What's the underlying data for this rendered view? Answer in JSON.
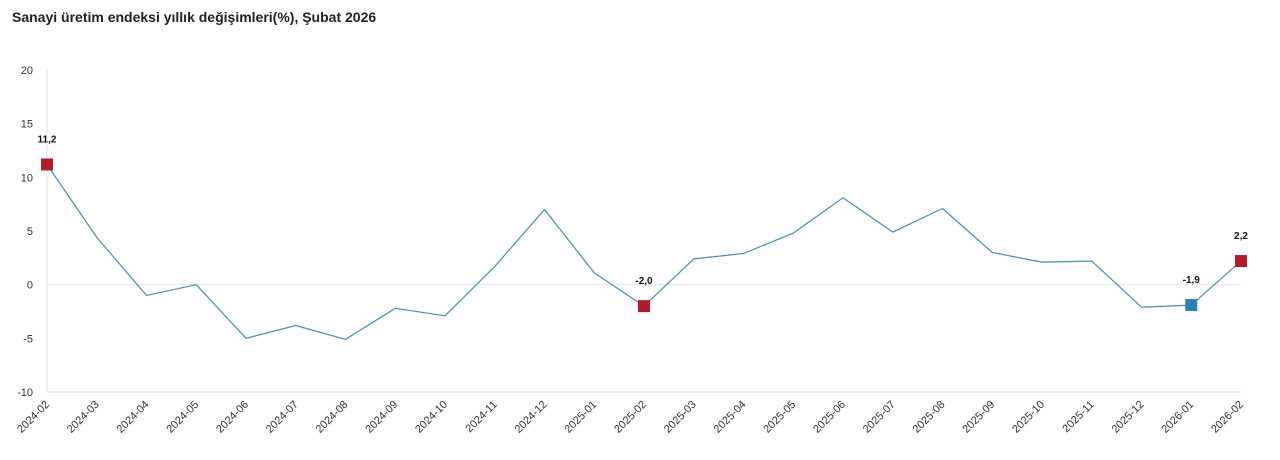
{
  "chart_data": {
    "type": "line",
    "title": "Sanayi üretim endeksi yıllık değişimleri(%), Şubat 2026",
    "xlabel": "",
    "ylabel": "",
    "ylim": [
      -10,
      20
    ],
    "yticks": [
      20,
      15,
      10,
      5,
      0,
      -5,
      -10
    ],
    "grid": false,
    "legend": "none",
    "line_color": "#4a8db0",
    "categories": [
      "2024-02",
      "2024-03",
      "2024-04",
      "2024-05",
      "2024-06",
      "2024-07",
      "2024-08",
      "2024-09",
      "2024-10",
      "2024-11",
      "2024-12",
      "2025-01",
      "2025-02",
      "2025-03",
      "2025-04",
      "2025-05",
      "2025-06",
      "2025-07",
      "2025-08",
      "2025-09",
      "2025-10",
      "2025-11",
      "2025-12",
      "2026-01",
      "2026-02"
    ],
    "series": [
      {
        "values": [
          11.2,
          4.4,
          -1.0,
          0.0,
          -5.0,
          -3.8,
          -5.1,
          -2.2,
          -2.9,
          1.7,
          7.0,
          1.1,
          -2.0,
          2.4,
          2.9,
          4.8,
          8.1,
          4.9,
          7.1,
          3.0,
          2.1,
          2.2,
          -2.1,
          -1.9,
          2.2
        ]
      }
    ],
    "markers": [
      {
        "index": 0,
        "label": "11,2",
        "color": "#b01c2e"
      },
      {
        "index": 12,
        "label": "-2,0",
        "color": "#b01c2e"
      },
      {
        "index": 23,
        "label": "-1,9",
        "color": "#2e7fb8"
      },
      {
        "index": 24,
        "label": "2,2",
        "color": "#b01c2e"
      }
    ]
  }
}
